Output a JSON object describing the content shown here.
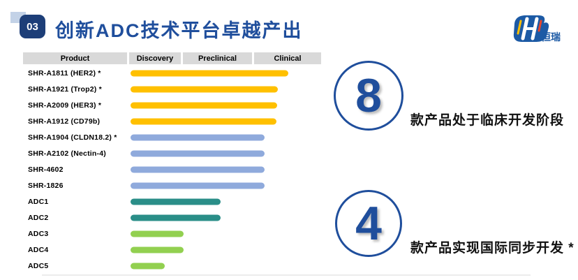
{
  "slide": {
    "badge": "03",
    "title": "创新ADC技术平台卓越产出"
  },
  "logo": {
    "text": "恒瑞",
    "mark": "hengrui-hr-monogram"
  },
  "pipeline": {
    "headers": [
      "Product",
      "Discovery",
      "Preclinical",
      "Clinical"
    ],
    "rows": [
      {
        "product": "SHR-A1811 (HER2) *",
        "stage": "Clinical",
        "color": "#FFC000",
        "bar_len": 226
      },
      {
        "product": "SHR-A1921 (Trop2) *",
        "stage": "Clinical",
        "color": "#FFC000",
        "bar_len": 211
      },
      {
        "product": "SHR-A2009 (HER3) *",
        "stage": "Clinical",
        "color": "#FFC000",
        "bar_len": 210
      },
      {
        "product": "SHR-A1912 (CD79b)",
        "stage": "Clinical",
        "color": "#FFC000",
        "bar_len": 209
      },
      {
        "product": "SHR-A1904 (CLDN18.2) *",
        "stage": "Clinical",
        "color": "#8FAADC",
        "bar_len": 192
      },
      {
        "product": "SHR-A2102 (Nectin-4)",
        "stage": "Clinical",
        "color": "#8FAADC",
        "bar_len": 192
      },
      {
        "product": "SHR-4602",
        "stage": "Clinical",
        "color": "#8FAADC",
        "bar_len": 192
      },
      {
        "product": "SHR-1826",
        "stage": "Clinical",
        "color": "#8FAADC",
        "bar_len": 192
      },
      {
        "product": "ADC1",
        "stage": "Preclinical",
        "color": "#2A8E88",
        "bar_len": 129
      },
      {
        "product": "ADC2",
        "stage": "Preclinical",
        "color": "#2A8E88",
        "bar_len": 129
      },
      {
        "product": "ADC3",
        "stage": "Discovery",
        "color": "#92D050",
        "bar_len": 76
      },
      {
        "product": "ADC4",
        "stage": "Discovery",
        "color": "#92D050",
        "bar_len": 76
      },
      {
        "product": "ADC5",
        "stage": "Discovery",
        "color": "#92D050",
        "bar_len": 49
      }
    ]
  },
  "callouts": [
    {
      "number": "8",
      "text": "款产品处于临床开发阶段"
    },
    {
      "number": "4",
      "text": "款产品实现国际同步开发 *"
    }
  ],
  "colors": {
    "accent_navy": "#1F4E9C",
    "badge_navy": "#1D3E78",
    "header_gray": "#D9D9D9",
    "gold": "#FFC000",
    "light_blue": "#8FAADC",
    "teal": "#2A8E88",
    "green": "#92D050"
  },
  "chart_data": {
    "type": "bar",
    "orientation": "horizontal",
    "title": "创新ADC技术平台卓越产出",
    "stage_columns": [
      "Discovery",
      "Preclinical",
      "Clinical"
    ],
    "categories": [
      "SHR-A1811 (HER2) *",
      "SHR-A1921 (Trop2) *",
      "SHR-A2009 (HER3) *",
      "SHR-A1912 (CD79b)",
      "SHR-A1904 (CLDN18.2) *",
      "SHR-A2102 (Nectin-4)",
      "SHR-4602",
      "SHR-1826",
      "ADC1",
      "ADC2",
      "ADC3",
      "ADC4",
      "ADC5"
    ],
    "values": [
      226,
      211,
      210,
      209,
      192,
      192,
      192,
      192,
      129,
      129,
      76,
      76,
      49
    ],
    "value_note": "relative bar length (px) from Discovery start; longer = further along pipeline",
    "stage_reached": [
      "Clinical",
      "Clinical",
      "Clinical",
      "Clinical",
      "Clinical",
      "Clinical",
      "Clinical",
      "Clinical",
      "Preclinical",
      "Preclinical",
      "Discovery",
      "Discovery",
      "Discovery"
    ],
    "bar_colors": [
      "#FFC000",
      "#FFC000",
      "#FFC000",
      "#FFC000",
      "#8FAADC",
      "#8FAADC",
      "#8FAADC",
      "#8FAADC",
      "#2A8E88",
      "#2A8E88",
      "#92D050",
      "#92D050",
      "#92D050"
    ],
    "annotations": [
      "8 款产品处于临床开发阶段",
      "4 款产品实现国际同步开发 *"
    ],
    "legend": "none",
    "grid": false
  }
}
